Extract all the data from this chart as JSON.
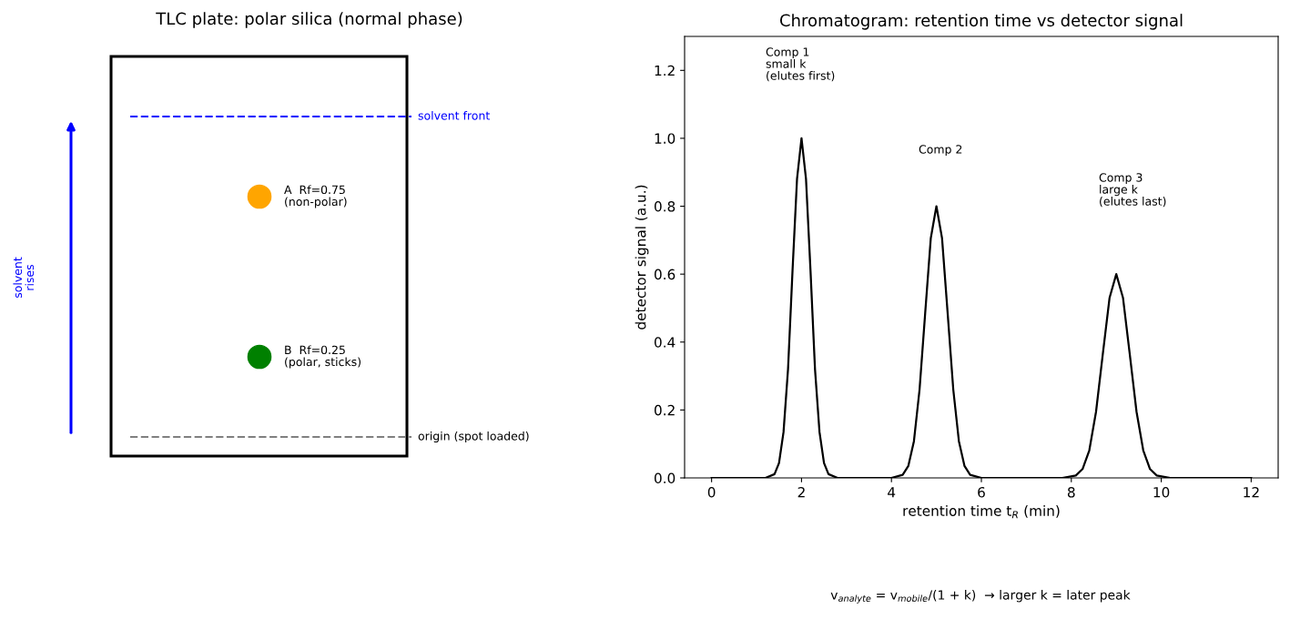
{
  "chart_data": [
    {
      "type": "other",
      "title": "TLC plate: polar silica (normal phase)",
      "annotations": [
        "solvent front",
        "origin (spot loaded)",
        "A  Rf=0.75\n(non-polar)",
        "B  Rf=0.25\n(polar, sticks)",
        "solvent\nrises"
      ]
    },
    {
      "type": "line",
      "title": "Chromatogram: retention time vs detector signal",
      "xlabel": "retention time t$_{R}$ (min)",
      "ylabel": "detector signal (a.u.)",
      "x": [
        0,
        1.2,
        1.4,
        1.5,
        1.6,
        1.7,
        1.8,
        1.9,
        2.0,
        2.1,
        2.2,
        2.3,
        2.4,
        2.5,
        2.6,
        2.8,
        4.0,
        4.25,
        4.375,
        4.5,
        4.625,
        4.75,
        4.875,
        5.0,
        5.125,
        5.25,
        5.375,
        5.5,
        5.625,
        5.75,
        6.0,
        7.8,
        8.1,
        8.25,
        8.4,
        8.55,
        8.7,
        8.85,
        9.0,
        9.15,
        9.3,
        9.45,
        9.6,
        9.75,
        9.9,
        10.2,
        12
      ],
      "series": [
        {
          "color": "#000000",
          "values": [
            0,
            0,
            0.011,
            0.044,
            0.135,
            0.32,
            0.61,
            0.88,
            1.0,
            0.88,
            0.61,
            0.32,
            0.135,
            0.044,
            0.011,
            0,
            0,
            0.009,
            0.035,
            0.108,
            0.26,
            0.485,
            0.706,
            0.8,
            0.706,
            0.485,
            0.26,
            0.108,
            0.035,
            0.009,
            0,
            0,
            0.007,
            0.026,
            0.081,
            0.195,
            0.364,
            0.53,
            0.6,
            0.53,
            0.364,
            0.195,
            0.081,
            0.026,
            0.007,
            0,
            0
          ]
        }
      ],
      "xlim": [
        -0.6,
        12.6
      ],
      "ylim": [
        0,
        1.3
      ],
      "xticks": [
        0,
        2,
        4,
        6,
        8,
        10,
        12
      ],
      "yticks": [
        {
          "value": 0,
          "label": "0.0"
        },
        0.2,
        0.4,
        0.6,
        0.8,
        {
          "value": 1,
          "label": "1.0"
        },
        1.2
      ],
      "grid": false,
      "legend": false,
      "marker": "none",
      "line_style": "solid",
      "annotations": [
        "Comp 1\nsmall k\n(elutes first)",
        "Comp 2",
        "Comp 3\nlarge k\n(elutes last)",
        "v$_{analyte}$ = v$_{mobile}$/(1 + k)  → larger k = later peak"
      ]
    }
  ]
}
